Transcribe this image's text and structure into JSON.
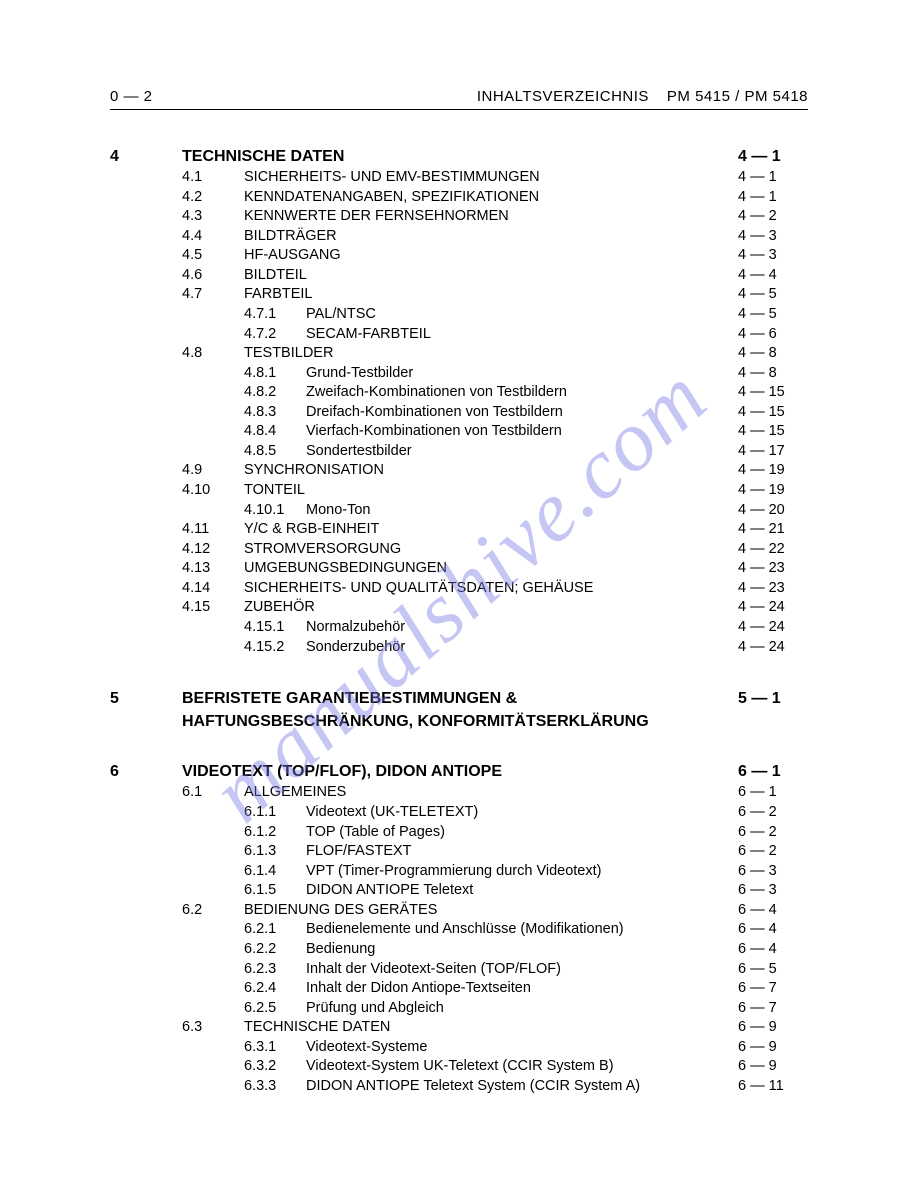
{
  "header": {
    "left": "0 — 2",
    "right_a": "INHALTSVERZEICHNIS",
    "right_b": "PM 5415 / PM 5418"
  },
  "watermark": "manualshive.com",
  "chapters": [
    {
      "num": "4",
      "title": "TECHNISCHE DATEN",
      "page": "4 — 1",
      "rows": [
        {
          "lvl": 1,
          "num": "4.1",
          "title": "SICHERHEITS- UND EMV-BESTIMMUNGEN",
          "page": "4 — 1"
        },
        {
          "lvl": 1,
          "num": "4.2",
          "title": "KENNDATENANGABEN, SPEZIFIKATIONEN",
          "page": "4 — 1"
        },
        {
          "lvl": 1,
          "num": "4.3",
          "title": "KENNWERTE DER FERNSEHNORMEN",
          "page": "4 — 2"
        },
        {
          "lvl": 1,
          "num": "4.4",
          "title": "BILDTRÄGER",
          "page": "4 — 3"
        },
        {
          "lvl": 1,
          "num": "4.5",
          "title": "HF-AUSGANG",
          "page": "4 — 3"
        },
        {
          "lvl": 1,
          "num": "4.6",
          "title": "BILDTEIL",
          "page": "4 — 4"
        },
        {
          "lvl": 1,
          "num": "4.7",
          "title": "FARBTEIL",
          "page": "4 — 5"
        },
        {
          "lvl": 2,
          "num": "4.7.1",
          "title": "PAL/NTSC",
          "page": "4 — 5"
        },
        {
          "lvl": 2,
          "num": "4.7.2",
          "title": "SECAM-FARBTEIL",
          "page": "4 — 6"
        },
        {
          "lvl": 1,
          "num": "4.8",
          "title": "TESTBILDER",
          "page": "4 — 8"
        },
        {
          "lvl": 2,
          "num": "4.8.1",
          "title": "Grund-Testbilder",
          "page": "4 — 8"
        },
        {
          "lvl": 2,
          "num": "4.8.2",
          "title": "Zweifach-Kombinationen von Testbildern",
          "page": "4 — 15"
        },
        {
          "lvl": 2,
          "num": "4.8.3",
          "title": "Dreifach-Kombinationen von Testbildern",
          "page": "4 — 15"
        },
        {
          "lvl": 2,
          "num": "4.8.4",
          "title": "Vierfach-Kombinationen von Testbildern",
          "page": "4 — 15"
        },
        {
          "lvl": 2,
          "num": "4.8.5",
          "title": "Sondertestbilder",
          "page": "4 — 17"
        },
        {
          "lvl": 1,
          "num": "4.9",
          "title": "SYNCHRONISATION",
          "page": "4 — 19"
        },
        {
          "lvl": 1,
          "num": "4.10",
          "title": "TONTEIL",
          "page": "4 — 19"
        },
        {
          "lvl": 2,
          "num": "4.10.1",
          "title": "Mono-Ton",
          "page": "4 — 20"
        },
        {
          "lvl": 1,
          "num": "4.11",
          "title": "Y/C & RGB-EINHEIT",
          "page": "4 — 21"
        },
        {
          "lvl": 1,
          "num": "4.12",
          "title": "STROMVERSORGUNG",
          "page": "4 — 22"
        },
        {
          "lvl": 1,
          "num": "4.13",
          "title": "UMGEBUNGSBEDINGUNGEN",
          "page": "4 — 23"
        },
        {
          "lvl": 1,
          "num": "4.14",
          "title": "SICHERHEITS- UND QUALITÄTSDATEN; GEHÄUSE",
          "page": "4 — 23"
        },
        {
          "lvl": 1,
          "num": "4.15",
          "title": "ZUBEHÖR",
          "page": "4 — 24"
        },
        {
          "lvl": 2,
          "num": "4.15.1",
          "title": "Normalzubehör",
          "page": "4 — 24"
        },
        {
          "lvl": 2,
          "num": "4.15.2",
          "title": "Sonderzubehör",
          "page": "4 — 24"
        }
      ]
    },
    {
      "num": "5",
      "title": "BEFRISTETE GARANTIEBESTIMMUNGEN & HAFTUNGSBESCHRÄNKUNG, KONFORMITÄTSERKLÄRUNG",
      "page": "5 — 1",
      "multiline": true,
      "rows": []
    },
    {
      "num": "6",
      "title": "VIDEOTEXT (TOP/FLOF), DIDON ANTIOPE",
      "page": "6 — 1",
      "rows": [
        {
          "lvl": 1,
          "num": "6.1",
          "title": "ALLGEMEINES",
          "page": "6 — 1"
        },
        {
          "lvl": 2,
          "num": "6.1.1",
          "title": "Videotext (UK-TELETEXT)",
          "page": "6 — 2"
        },
        {
          "lvl": 2,
          "num": "6.1.2",
          "title": "TOP (Table of Pages)",
          "page": "6 — 2"
        },
        {
          "lvl": 2,
          "num": "6.1.3",
          "title": "FLOF/FASTEXT",
          "page": "6 — 2"
        },
        {
          "lvl": 2,
          "num": "6.1.4",
          "title": "VPT (Timer-Programmierung durch Videotext)",
          "page": "6 — 3"
        },
        {
          "lvl": 2,
          "num": "6.1.5",
          "title": "DIDON ANTIOPE Teletext",
          "page": "6 — 3"
        },
        {
          "lvl": 1,
          "num": "6.2",
          "title": "BEDIENUNG DES GERÄTES",
          "page": "6 — 4"
        },
        {
          "lvl": 2,
          "num": "6.2.1",
          "title": "Bedienelemente und Anschlüsse (Modifikationen)",
          "page": "6 — 4"
        },
        {
          "lvl": 2,
          "num": "6.2.2",
          "title": "Bedienung",
          "page": "6 — 4"
        },
        {
          "lvl": 2,
          "num": "6.2.3",
          "title": "Inhalt der Videotext-Seiten (TOP/FLOF)",
          "page": "6 — 5"
        },
        {
          "lvl": 2,
          "num": "6.2.4",
          "title": "Inhalt der Didon Antiope-Textseiten",
          "page": "6 — 7"
        },
        {
          "lvl": 2,
          "num": "6.2.5",
          "title": "Prüfung und Abgleich",
          "page": "6 — 7"
        },
        {
          "lvl": 1,
          "num": "6.3",
          "title": "TECHNISCHE DATEN",
          "page": "6 — 9"
        },
        {
          "lvl": 2,
          "num": "6.3.1",
          "title": "Videotext-Systeme",
          "page": "6 — 9"
        },
        {
          "lvl": 2,
          "num": "6.3.2",
          "title": "Videotext-System UK-Teletext (CCIR System B)",
          "page": "6 — 9"
        },
        {
          "lvl": 2,
          "num": "6.3.3",
          "title": "DIDON ANTIOPE Teletext System (CCIR System A)",
          "page": "6 — 11"
        }
      ]
    }
  ]
}
